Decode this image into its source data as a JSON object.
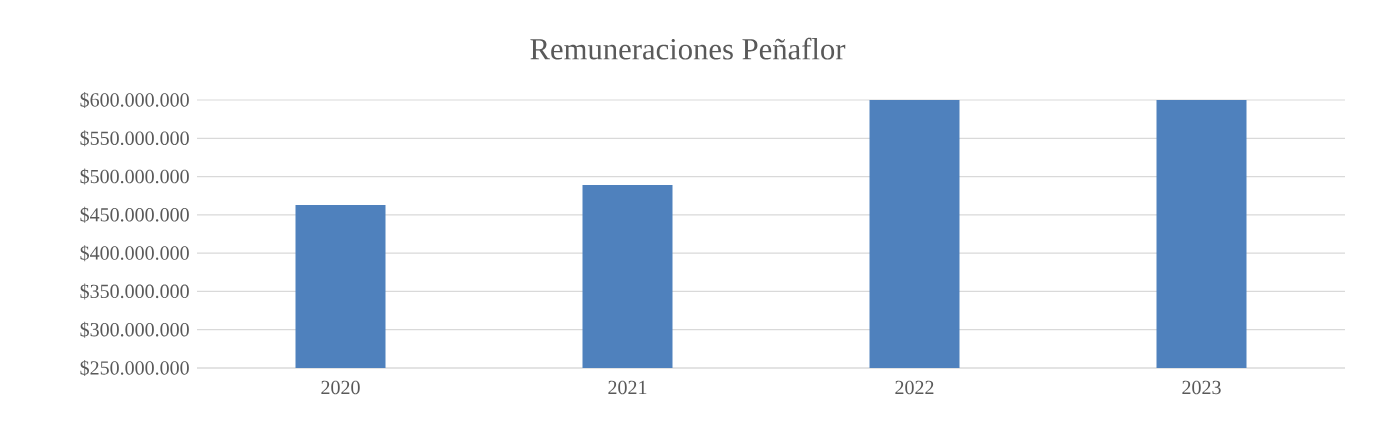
{
  "chart_data": {
    "type": "bar",
    "title": "Remuneraciones Peñaflor",
    "categories": [
      "2020",
      "2021",
      "2022",
      "2023"
    ],
    "values": [
      463000000,
      489000000,
      600000000,
      600000000
    ],
    "color": "#4f81bd",
    "ylim": [
      250000000,
      600000000
    ],
    "yticks": [
      {
        "value": 250000000,
        "label": "$250.000.000"
      },
      {
        "value": 300000000,
        "label": "$300.000.000"
      },
      {
        "value": 350000000,
        "label": "$350.000.000"
      },
      {
        "value": 400000000,
        "label": "$400.000.000"
      },
      {
        "value": 450000000,
        "label": "$450.000.000"
      },
      {
        "value": 500000000,
        "label": "$500.000.000"
      },
      {
        "value": 550000000,
        "label": "$550.000.000"
      },
      {
        "value": 600000000,
        "label": "$600.000.000"
      }
    ],
    "grid": "y"
  }
}
